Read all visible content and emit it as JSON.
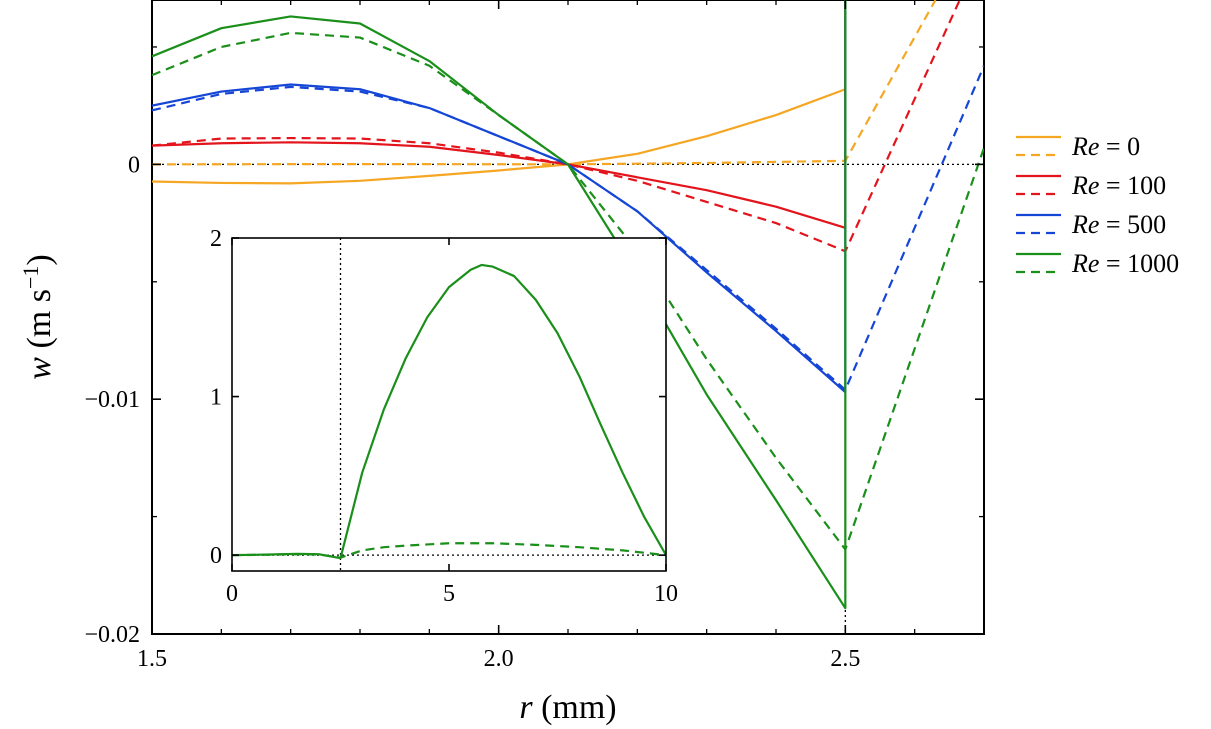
{
  "chart_data": [
    {
      "id": "main",
      "type": "line",
      "xlabel": {
        "var": "r",
        "unit": " (mm)"
      },
      "ylabel": {
        "var": "w",
        "unit_prefix": " (m s",
        "unit_sup": "−1",
        "unit_suffix": ")"
      },
      "xlim": [
        1.5,
        2.7
      ],
      "ylim": [
        -0.02,
        0.007
      ],
      "xticks": [
        1.5,
        2.0,
        2.5
      ],
      "xtick_labels": [
        "1.5",
        "2.0",
        "2.5"
      ],
      "yticks": [
        -0.02,
        -0.01,
        0
      ],
      "ytick_labels": [
        "−0.02",
        "−0.01",
        "0"
      ],
      "legend": {
        "position": "right",
        "entries": [
          {
            "var": "Re",
            "text": " = 0",
            "color": "#f5a623"
          },
          {
            "var": "Re",
            "text": " = 100",
            "color": "#e3141c"
          },
          {
            "var": "Re",
            "text": " = 500",
            "color": "#1546d6"
          },
          {
            "var": "Re",
            "text": " = 1000",
            "color": "#1a8f1a"
          }
        ]
      },
      "reference_lines": [
        {
          "orientation": "horizontal",
          "value": 0,
          "style": "dotted"
        },
        {
          "orientation": "vertical",
          "value": 2.5,
          "style": "dotted"
        }
      ],
      "series": [
        {
          "re": 0,
          "style": "solid",
          "color": "#f5a623",
          "points": [
            [
              1.5,
              -0.00073
            ],
            [
              1.6,
              -0.00079
            ],
            [
              1.7,
              -0.00081
            ],
            [
              1.8,
              -0.0007
            ],
            [
              1.9,
              -0.00049
            ],
            [
              2.0,
              -0.00026
            ],
            [
              2.1,
              0
            ],
            [
              2.2,
              0.00045
            ],
            [
              2.3,
              0.0012
            ],
            [
              2.4,
              0.0021
            ],
            [
              2.5,
              0.0032
            ],
            [
              2.5,
              0.007
            ]
          ]
        },
        {
          "re": 0,
          "style": "dashed",
          "color": "#f5a623",
          "points": [
            [
              1.5,
              0.0
            ],
            [
              1.7,
              1e-05
            ],
            [
              1.9,
              1e-05
            ],
            [
              2.1,
              0
            ],
            [
              2.3,
              6e-05
            ],
            [
              2.5,
              0.00015
            ],
            [
              2.5,
              0.00015
            ],
            [
              2.63,
              0.007
            ]
          ]
        },
        {
          "re": 100,
          "style": "solid",
          "color": "#e3141c",
          "points": [
            [
              1.5,
              0.0008
            ],
            [
              1.6,
              0.0009
            ],
            [
              1.7,
              0.00094
            ],
            [
              1.8,
              0.0009
            ],
            [
              1.9,
              0.00075
            ],
            [
              2.0,
              0.0004
            ],
            [
              2.1,
              0
            ],
            [
              2.2,
              -0.00055
            ],
            [
              2.3,
              -0.0011
            ],
            [
              2.4,
              -0.0018
            ],
            [
              2.5,
              -0.0027
            ],
            [
              2.5,
              0.007
            ]
          ]
        },
        {
          "re": 100,
          "style": "dashed",
          "color": "#e3141c",
          "points": [
            [
              1.5,
              0.0008
            ],
            [
              1.6,
              0.0011
            ],
            [
              1.7,
              0.00112
            ],
            [
              1.8,
              0.0011
            ],
            [
              1.9,
              0.0009
            ],
            [
              2.0,
              0.0005
            ],
            [
              2.1,
              0
            ],
            [
              2.2,
              -0.0007
            ],
            [
              2.3,
              -0.0016
            ],
            [
              2.4,
              -0.0025
            ],
            [
              2.5,
              -0.0037
            ],
            [
              2.5,
              -0.0037
            ],
            [
              2.665,
              0.007
            ]
          ]
        },
        {
          "re": 500,
          "style": "solid",
          "color": "#1546d6",
          "points": [
            [
              1.5,
              0.0025
            ],
            [
              1.6,
              0.0031
            ],
            [
              1.7,
              0.0034
            ],
            [
              1.8,
              0.0032
            ],
            [
              1.9,
              0.0024
            ],
            [
              2.0,
              0.0012
            ],
            [
              2.1,
              0
            ],
            [
              2.2,
              -0.002
            ],
            [
              2.3,
              -0.0046
            ],
            [
              2.4,
              -0.0071
            ],
            [
              2.5,
              -0.0097
            ],
            [
              2.5,
              0.007
            ]
          ]
        },
        {
          "re": 500,
          "style": "dashed",
          "color": "#1546d6",
          "points": [
            [
              1.5,
              0.0023
            ],
            [
              1.6,
              0.003
            ],
            [
              1.7,
              0.0033
            ],
            [
              1.8,
              0.0031
            ],
            [
              1.9,
              0.0024
            ],
            [
              2.0,
              0.0012
            ],
            [
              2.1,
              0
            ],
            [
              2.2,
              -0.002
            ],
            [
              2.3,
              -0.0045
            ],
            [
              2.4,
              -0.007
            ],
            [
              2.5,
              -0.0096
            ],
            [
              2.5,
              -0.0096
            ],
            [
              2.7,
              0.0042
            ]
          ]
        },
        {
          "re": 1000,
          "style": "solid",
          "color": "#1a8f1a",
          "points": [
            [
              1.5,
              0.0046
            ],
            [
              1.6,
              0.0058
            ],
            [
              1.7,
              0.0063
            ],
            [
              1.8,
              0.006
            ],
            [
              1.9,
              0.0044
            ],
            [
              2.0,
              0.0021
            ],
            [
              2.1,
              0
            ],
            [
              2.2,
              -0.0047
            ],
            [
              2.3,
              -0.0098
            ],
            [
              2.4,
              -0.0143
            ],
            [
              2.5,
              -0.0189
            ],
            [
              2.5,
              0.007
            ]
          ]
        },
        {
          "re": 1000,
          "style": "dashed",
          "color": "#1a8f1a",
          "points": [
            [
              1.5,
              0.0038
            ],
            [
              1.6,
              0.005
            ],
            [
              1.7,
              0.0056
            ],
            [
              1.8,
              0.0054
            ],
            [
              1.9,
              0.0042
            ],
            [
              2.0,
              0.0021
            ],
            [
              2.1,
              0
            ],
            [
              2.2,
              -0.0037
            ],
            [
              2.3,
              -0.0083
            ],
            [
              2.4,
              -0.0125
            ],
            [
              2.5,
              -0.0164
            ],
            [
              2.5,
              -0.0164
            ],
            [
              2.7,
              0.0007
            ]
          ]
        }
      ]
    },
    {
      "id": "inset",
      "type": "line",
      "xlim": [
        0,
        10
      ],
      "ylim": [
        -0.1,
        2
      ],
      "xticks": [
        0,
        5,
        10
      ],
      "xtick_labels": [
        "0",
        "5",
        "10"
      ],
      "yticks": [
        0,
        1,
        2
      ],
      "ytick_labels": [
        "0",
        "1",
        "2"
      ],
      "reference_lines": [
        {
          "orientation": "horizontal",
          "value": 0,
          "style": "dotted"
        },
        {
          "orientation": "vertical",
          "value": 2.5,
          "style": "dotted"
        }
      ],
      "series": [
        {
          "re": 1000,
          "style": "solid",
          "color": "#1a8f1a",
          "points": [
            [
              0,
              0
            ],
            [
              0.5,
              0.002
            ],
            [
              1,
              0.005
            ],
            [
              1.5,
              0.008
            ],
            [
              2,
              0.006
            ],
            [
              2.5,
              -0.019
            ],
            [
              3,
              0.52
            ],
            [
              3.5,
              0.92
            ],
            [
              4,
              1.24
            ],
            [
              4.5,
              1.5
            ],
            [
              5,
              1.69
            ],
            [
              5.5,
              1.8
            ],
            [
              5.75,
              1.83
            ],
            [
              6,
              1.82
            ],
            [
              6.5,
              1.76
            ],
            [
              7,
              1.61
            ],
            [
              7.5,
              1.4
            ],
            [
              8,
              1.13
            ],
            [
              8.5,
              0.82
            ],
            [
              9,
              0.52
            ],
            [
              9.5,
              0.24
            ],
            [
              10,
              0.0
            ]
          ]
        },
        {
          "re": 1000,
          "style": "dashed",
          "color": "#1a8f1a",
          "points": [
            [
              0,
              0
            ],
            [
              0.5,
              0.0015
            ],
            [
              1,
              0.004
            ],
            [
              1.5,
              0.006
            ],
            [
              2,
              0.004
            ],
            [
              2.5,
              -0.016
            ],
            [
              3,
              0.03
            ],
            [
              3.5,
              0.05
            ],
            [
              4,
              0.06
            ],
            [
              5,
              0.075
            ],
            [
              6,
              0.075
            ],
            [
              7,
              0.065
            ],
            [
              8,
              0.05
            ],
            [
              9,
              0.03
            ],
            [
              10,
              0.0
            ]
          ]
        }
      ]
    }
  ]
}
